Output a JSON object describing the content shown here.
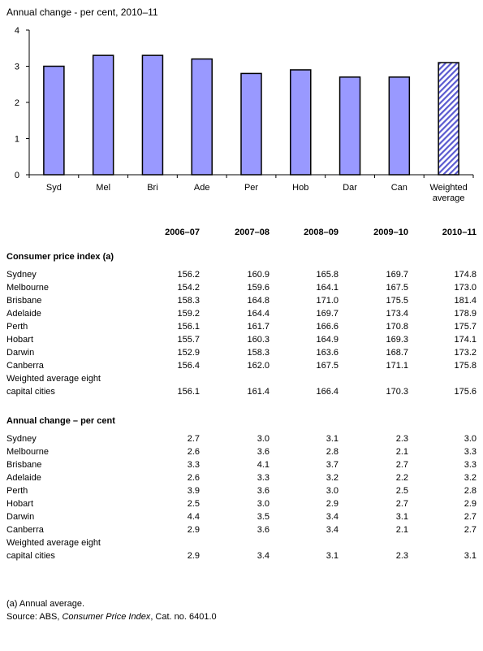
{
  "chart_data": {
    "type": "bar",
    "title": "Annual change - per cent, 2010–11",
    "categories": [
      "Syd",
      "Mel",
      "Bri",
      "Ade",
      "Per",
      "Hob",
      "Dar",
      "Can",
      "Weighted average"
    ],
    "category_lines": [
      [
        "Syd"
      ],
      [
        "Mel"
      ],
      [
        "Bri"
      ],
      [
        "Ade"
      ],
      [
        "Per"
      ],
      [
        "Hob"
      ],
      [
        "Dar"
      ],
      [
        "Can"
      ],
      [
        "Weighted",
        "average"
      ]
    ],
    "values": [
      3.0,
      3.3,
      3.3,
      3.2,
      2.8,
      2.9,
      2.7,
      2.7,
      3.1
    ],
    "yticks": [
      0,
      1,
      2,
      3,
      4
    ],
    "ylim": [
      0,
      4
    ],
    "grid": false,
    "bar_color": "#9999ff",
    "highlight_index": 8,
    "highlight_pattern": "diagonal-hatch"
  },
  "table": {
    "years": [
      "2006–07",
      "2007–08",
      "2008–09",
      "2009–10",
      "2010–11"
    ],
    "sections": [
      {
        "title": "Consumer price index (a)",
        "rows": [
          {
            "label": [
              "Sydney"
            ],
            "values": [
              "156.2",
              "160.9",
              "165.8",
              "169.7",
              "174.8"
            ]
          },
          {
            "label": [
              "Melbourne"
            ],
            "values": [
              "154.2",
              "159.6",
              "164.1",
              "167.5",
              "173.0"
            ]
          },
          {
            "label": [
              "Brisbane"
            ],
            "values": [
              "158.3",
              "164.8",
              "171.0",
              "175.5",
              "181.4"
            ]
          },
          {
            "label": [
              "Adelaide"
            ],
            "values": [
              "159.2",
              "164.4",
              "169.7",
              "173.4",
              "178.9"
            ]
          },
          {
            "label": [
              "Perth"
            ],
            "values": [
              "156.1",
              "161.7",
              "166.6",
              "170.8",
              "175.7"
            ]
          },
          {
            "label": [
              "Hobart"
            ],
            "values": [
              "155.7",
              "160.3",
              "164.9",
              "169.3",
              "174.1"
            ]
          },
          {
            "label": [
              "Darwin"
            ],
            "values": [
              "152.9",
              "158.3",
              "163.6",
              "168.7",
              "173.2"
            ]
          },
          {
            "label": [
              "Canberra"
            ],
            "values": [
              "156.4",
              "162.0",
              "167.5",
              "171.1",
              "175.8"
            ]
          },
          {
            "label": [
              "Weighted average eight",
              "capital cities"
            ],
            "values": [
              "156.1",
              "161.4",
              "166.4",
              "170.3",
              "175.6"
            ]
          }
        ]
      },
      {
        "title": "Annual change – per cent",
        "rows": [
          {
            "label": [
              "Sydney"
            ],
            "values": [
              "2.7",
              "3.0",
              "3.1",
              "2.3",
              "3.0"
            ]
          },
          {
            "label": [
              "Melbourne"
            ],
            "values": [
              "2.6",
              "3.6",
              "2.8",
              "2.1",
              "3.3"
            ]
          },
          {
            "label": [
              "Brisbane"
            ],
            "values": [
              "3.3",
              "4.1",
              "3.7",
              "2.7",
              "3.3"
            ]
          },
          {
            "label": [
              "Adelaide"
            ],
            "values": [
              "2.6",
              "3.3",
              "3.2",
              "2.2",
              "3.2"
            ]
          },
          {
            "label": [
              "Perth"
            ],
            "values": [
              "3.9",
              "3.6",
              "3.0",
              "2.5",
              "2.8"
            ]
          },
          {
            "label": [
              "Hobart"
            ],
            "values": [
              "2.5",
              "3.0",
              "2.9",
              "2.7",
              "2.9"
            ]
          },
          {
            "label": [
              "Darwin"
            ],
            "values": [
              "4.4",
              "3.5",
              "3.4",
              "3.1",
              "2.7"
            ]
          },
          {
            "label": [
              "Canberra"
            ],
            "values": [
              "2.9",
              "3.6",
              "3.4",
              "2.1",
              "2.7"
            ]
          },
          {
            "label": [
              "Weighted average eight",
              "capital cities"
            ],
            "values": [
              "2.9",
              "3.4",
              "3.1",
              "2.3",
              "3.1"
            ]
          }
        ]
      }
    ]
  },
  "notes": {
    "footnote": "(a) Annual average.",
    "source_prefix": "Source: ABS, ",
    "source_title": "Consumer Price Index",
    "source_suffix": ", Cat. no. 6401.0"
  }
}
